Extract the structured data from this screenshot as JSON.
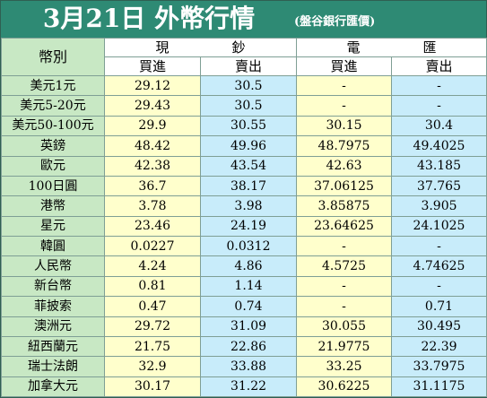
{
  "title": {
    "main": "3月21日 外幣行情",
    "source": "(盤谷銀行匯價)"
  },
  "header": {
    "currency_label": "幣別",
    "cash": [
      "現",
      "鈔"
    ],
    "remittance": [
      "電",
      "匯"
    ],
    "buy_label": "買進",
    "sell_label": "賣出"
  },
  "rows": [
    {
      "name": "美元1元",
      "cash_buy": "29.12",
      "cash_sell": "30.5",
      "tt_buy": "-",
      "tt_sell": "-"
    },
    {
      "name": "美元5-20元",
      "cash_buy": "29.43",
      "cash_sell": "30.5",
      "tt_buy": "-",
      "tt_sell": "-"
    },
    {
      "name": "美元50-100元",
      "cash_buy": "29.9",
      "cash_sell": "30.55",
      "tt_buy": "30.15",
      "tt_sell": "30.4"
    },
    {
      "name": "英鎊",
      "cash_buy": "48.42",
      "cash_sell": "49.96",
      "tt_buy": "48.7975",
      "tt_sell": "49.4025"
    },
    {
      "name": "歐元",
      "cash_buy": "42.38",
      "cash_sell": "43.54",
      "tt_buy": "42.63",
      "tt_sell": "43.185"
    },
    {
      "name": "100日圓",
      "cash_buy": "36.7",
      "cash_sell": "38.17",
      "tt_buy": "37.06125",
      "tt_sell": "37.765"
    },
    {
      "name": "港幣",
      "cash_buy": "3.78",
      "cash_sell": "3.98",
      "tt_buy": "3.85875",
      "tt_sell": "3.905"
    },
    {
      "name": "星元",
      "cash_buy": "23.46",
      "cash_sell": "24.19",
      "tt_buy": "23.64625",
      "tt_sell": "24.1025"
    },
    {
      "name": "韓圓",
      "cash_buy": "0.0227",
      "cash_sell": "0.0312",
      "tt_buy": "-",
      "tt_sell": "-"
    },
    {
      "name": "人民幣",
      "cash_buy": "4.24",
      "cash_sell": "4.86",
      "tt_buy": "4.5725",
      "tt_sell": "4.74625"
    },
    {
      "name": "新台幣",
      "cash_buy": "0.81",
      "cash_sell": "1.14",
      "tt_buy": "-",
      "tt_sell": "-"
    },
    {
      "name": "菲披索",
      "cash_buy": "0.47",
      "cash_sell": "0.74",
      "tt_buy": "-",
      "tt_sell": "0.71"
    },
    {
      "name": "澳洲元",
      "cash_buy": "29.72",
      "cash_sell": "31.09",
      "tt_buy": "30.055",
      "tt_sell": "30.495"
    },
    {
      "name": "紐西蘭元",
      "cash_buy": "21.75",
      "cash_sell": "22.86",
      "tt_buy": "21.9775",
      "tt_sell": "22.39"
    },
    {
      "name": "瑞士法朗",
      "cash_buy": "32.9",
      "cash_sell": "33.88",
      "tt_buy": "33.25",
      "tt_sell": "33.7975"
    },
    {
      "name": "加拿大元",
      "cash_buy": "30.17",
      "cash_sell": "31.22",
      "tt_buy": "30.6225",
      "tt_sell": "31.1175"
    }
  ],
  "colors": {
    "title_bg": "#2e8a74",
    "name_col_bg": "#c8e8c4",
    "buy_col_bg": "#ffffcc",
    "sell_col_bg": "#c8ecfa"
  }
}
